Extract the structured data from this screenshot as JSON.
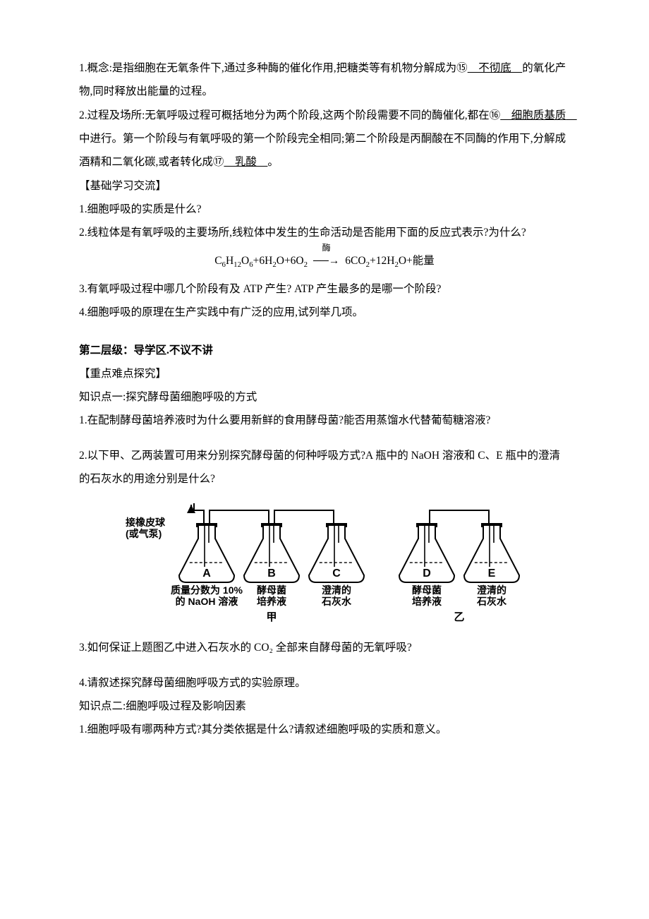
{
  "content": {
    "p1_a": "1.概念:是指细胞在无氧条件下,通过多种酶的催化作用,把糖类等有机物分解成为⑮",
    "p1_u": "　不彻底　",
    "p1_b": "的氧化产物,同时释放出能量的过程。",
    "p2_a": "2.过程及场所:无氧呼吸过程可概括地分为两个阶段,这两个阶段需要不同的酶催化,都在⑯",
    "p2_u1": "　细胞质基质　",
    "p2_b": "中进行。第一个阶段与有氧呼吸的第一个阶段完全相同;第二个阶段是丙酮酸在不同酶的作用下,分解成酒精和二氧化碳,或者转化成⑰",
    "p2_u2": "　乳酸　",
    "p2_c": "。",
    "h1": "【基础学习交流】",
    "q1": "1.细胞呼吸的实质是什么?",
    "q2": "2.线粒体是有氧呼吸的主要场所,线粒体中发生的生命活动是否能用下面的反应式表示?为什么?",
    "eq": "C₆H₁₂O₆+6H₂O+6O₂ ⟶ 6CO₂+12H₂O+能量",
    "eq_over": "酶",
    "q3": "3.有氧呼吸过程中哪几个阶段有及 ATP 产生? ATP 产生最多的是哪一个阶段?",
    "q4": "4.细胞呼吸的原理在生产实践中有广泛的应用,试列举几项。",
    "h2": "第二层级：导学区.不议不讲",
    "h3": "【重点难点探究】",
    "kp1": "知识点一:探究酵母菌细胞呼吸的方式",
    "kq1": "1.在配制酵母菌培养液时为什么要用新鲜的食用酵母菌?能否用蒸馏水代替葡萄糖溶液?",
    "kq2": "2.以下甲、乙两装置可用来分别探究酵母菌的何种呼吸方式?A 瓶中的 NaOH 溶液和 C、E 瓶中的澄清的石灰水的用途分别是什么?",
    "kq3": "3.如何保证上题图乙中进入石灰水的 CO₂ 全部来自酵母菌的无氧呼吸?",
    "kq4": "4.请叙述探究酵母菌细胞呼吸方式的实验原理。",
    "kp2": "知识点二:细胞呼吸过程及影响因素",
    "kq5": "1.细胞呼吸有哪两种方式?其分类依据是什么?请叙述细胞呼吸的实质和意义。"
  },
  "diagram": {
    "pump_label_1": "接橡皮球",
    "pump_label_2": "(或气泵)",
    "groups": [
      {
        "key": "left",
        "caption": "甲",
        "flasks": [
          {
            "letter": "A",
            "line1": "质量分数为 10%",
            "line2": "的 NaOH 溶液"
          },
          {
            "letter": "B",
            "line1": "酵母菌",
            "line2": "培养液"
          },
          {
            "letter": "C",
            "line1": "澄清的",
            "line2": "石灰水"
          }
        ]
      },
      {
        "key": "right",
        "caption": "乙",
        "flasks": [
          {
            "letter": "D",
            "line1": "酵母菌",
            "line2": "培养液"
          },
          {
            "letter": "E",
            "line1": "澄清的",
            "line2": "石灰水"
          }
        ]
      }
    ],
    "style": {
      "stroke": "#000000",
      "stroke_width": 2,
      "fill": "#ffffff",
      "font": "SimHei, sans-serif",
      "label_fontsize": 14,
      "caption_fontsize": 15,
      "letter_fontsize": 16,
      "pump_fontsize": 14,
      "flask_height": 62,
      "flask_width": 78,
      "neck_width": 24,
      "neck_height": 18,
      "group_gap": 50,
      "flask_gap": 14
    }
  }
}
